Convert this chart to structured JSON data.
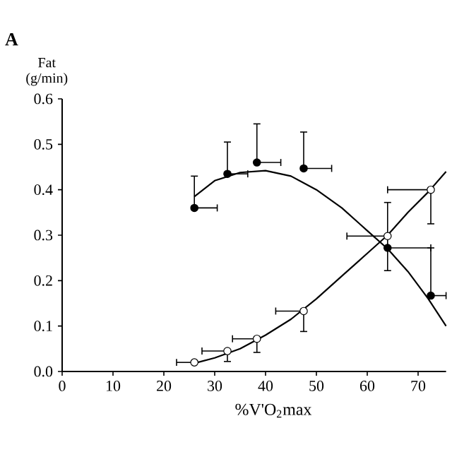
{
  "chart_data": {
    "type": "scatter",
    "xlabel": "%V'O$_{2}$max",
    "ylabel": "Fat (g/min)",
    "annotations": [
      "A"
    ],
    "xlim": [
      0,
      75.5
    ],
    "ylim": [
      0,
      0.6
    ],
    "xticks": [
      0,
      10,
      20,
      30,
      40,
      50,
      60,
      70
    ],
    "yticks": [
      {
        "value": 0,
        "label": "0.0"
      },
      {
        "value": 0.1,
        "label": "0.1"
      },
      {
        "value": 0.2,
        "label": "0.2"
      },
      {
        "value": 0.3,
        "label": "0.3"
      },
      {
        "value": 0.4,
        "label": "0.4"
      },
      {
        "value": 0.5,
        "label": "0.5"
      },
      {
        "value": 0.6,
        "label": "0.6"
      }
    ],
    "grid": false,
    "series": [
      {
        "type": "line",
        "color": "#000000",
        "x": [
          26,
          30,
          35,
          40,
          45,
          50,
          55,
          60,
          64,
          68,
          72,
          75.5
        ],
        "values": [
          0.385,
          0.42,
          0.438,
          0.442,
          0.43,
          0.4,
          0.36,
          0.31,
          0.27,
          0.22,
          0.16,
          0.1
        ],
        "marker": "none"
      },
      {
        "type": "line",
        "color": "#000000",
        "x": [
          26,
          30,
          35,
          40,
          45,
          50,
          55,
          60,
          64,
          68,
          72,
          75.5
        ],
        "values": [
          0.018,
          0.03,
          0.05,
          0.08,
          0.115,
          0.16,
          0.21,
          0.26,
          0.3,
          0.35,
          0.395,
          0.44
        ],
        "marker": "none"
      },
      {
        "color": "#000000",
        "marker": "circle",
        "x": [
          26,
          32.5,
          38.3,
          47.5,
          64,
          72.5
        ],
        "values": [
          0.36,
          0.435,
          0.46,
          0.447,
          0.272,
          0.167
        ],
        "errors": [
          [
            0.36,
            0.43
          ],
          [
            0.435,
            0.505
          ],
          [
            0.46,
            0.545
          ],
          [
            0.447,
            0.527
          ],
          [
            0.222,
            0.372
          ],
          [
            0.167,
            0.272
          ]
        ],
        "xerrors": [
          [
            26,
            30.5
          ],
          [
            32.5,
            36.5
          ],
          [
            38.3,
            43
          ],
          [
            47.5,
            53
          ],
          [
            64,
            72.5
          ],
          [
            72.5,
            75.5
          ]
        ]
      },
      {
        "color": "#ffffff",
        "marker": "circle",
        "x": [
          26,
          32.5,
          38.3,
          47.5,
          64,
          72.5
        ],
        "values": [
          0.02,
          0.045,
          0.072,
          0.133,
          0.298,
          0.4
        ],
        "errors": [
          null,
          [
            0.022,
            0.045
          ],
          [
            0.042,
            0.072
          ],
          [
            0.088,
            0.133
          ],
          null,
          [
            0.325,
            0.4
          ]
        ],
        "xerrors": [
          [
            22.5,
            26
          ],
          [
            27.5,
            32.5
          ],
          [
            33.5,
            38.3
          ],
          [
            42,
            47.5
          ],
          [
            56,
            64
          ],
          [
            64,
            72.5
          ]
        ]
      }
    ]
  }
}
